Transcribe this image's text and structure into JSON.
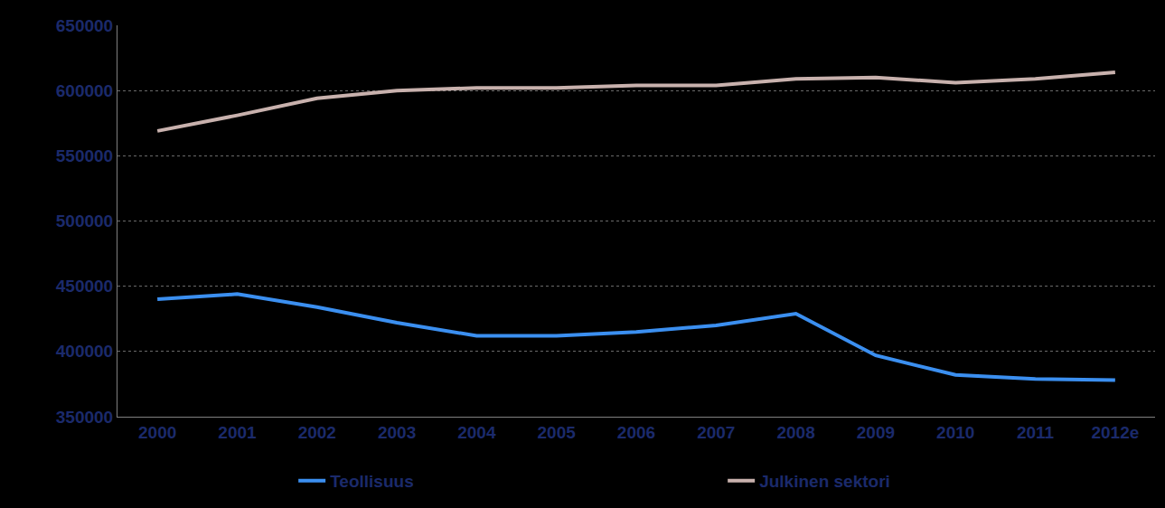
{
  "chart_data": {
    "type": "line",
    "categories": [
      "2000",
      "2001",
      "2002",
      "2003",
      "2004",
      "2005",
      "2006",
      "2007",
      "2008",
      "2009",
      "2010",
      "2011",
      "2012e"
    ],
    "series": [
      {
        "name": "Teollisuus",
        "color": "#3b8ff0",
        "values": [
          440000,
          444000,
          434000,
          422000,
          412000,
          412000,
          415000,
          420000,
          429000,
          397000,
          382000,
          379000,
          378000
        ]
      },
      {
        "name": "Julkinen sektori",
        "color": "#c8b1ad",
        "values": [
          569000,
          581000,
          594000,
          600000,
          602000,
          602000,
          604000,
          604000,
          609000,
          610000,
          606000,
          609000,
          614000
        ]
      }
    ],
    "ylim": [
      350000,
      650000
    ],
    "yticks": [
      350000,
      400000,
      450000,
      500000,
      550000,
      600000,
      650000
    ],
    "grid": true,
    "legend": "bottom"
  }
}
